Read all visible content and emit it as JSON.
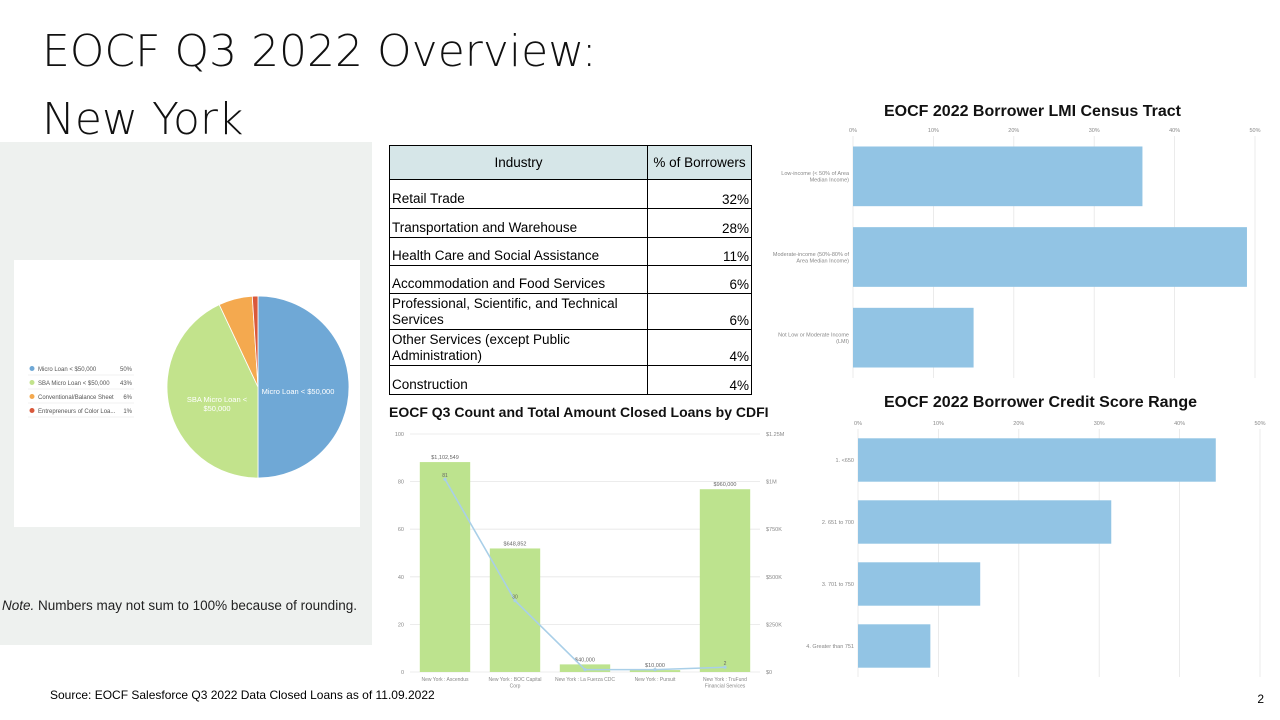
{
  "slide": {
    "title_line1": "EOCF Q3 2022 Overview:",
    "title_line2": "New York",
    "note_italic": "Note.",
    "note_text": " Numbers may not sum to 100% because of rounding.",
    "source": "Source: EOCF Salesforce Q3 2022 Data Closed Loans as of 11.09.2022",
    "page_number": "2"
  },
  "industry_table": {
    "headers": [
      "Industry",
      "% of Borrowers"
    ],
    "rows": [
      {
        "industry": "Retail Trade",
        "pct": "32%"
      },
      {
        "industry": "Transportation and Warehouse",
        "pct": "28%"
      },
      {
        "industry": "Health Care and Social Assistance",
        "pct": "11%"
      },
      {
        "industry": "Accommodation and Food Services",
        "pct": "6%"
      },
      {
        "industry": "Professional, Scientific, and Technical Services",
        "pct": "6%"
      },
      {
        "industry": "Other Services (except Public Administration)",
        "pct": "4%"
      },
      {
        "industry": "Construction",
        "pct": "4%"
      }
    ]
  },
  "chart_data": [
    {
      "type": "pie",
      "title": "",
      "slices": [
        {
          "label": "Micro Loan < $50,000",
          "value": 50,
          "display": "50%",
          "color": "#6fa8d6"
        },
        {
          "label": "SBA Micro Loan < $50,000",
          "value": 43,
          "display": "43%",
          "color": "#c2e38c"
        },
        {
          "label": "Conventional/Balance Sheet",
          "value": 6,
          "display": "6%",
          "color": "#f4a94f"
        },
        {
          "label": "Entrepreneurs of Color Loa...",
          "value": 1,
          "display": "1%",
          "color": "#d9593b"
        }
      ],
      "slice_labels": [
        "Micro Loan < $50,000",
        "SBA Micro Loan < $50,000"
      ],
      "legend": "left"
    },
    {
      "type": "bar",
      "title": "EOCF 2022  Borrower LMI Census Tract",
      "orientation": "horizontal",
      "categories": [
        "Low-income (< 50% of Area Median Income)",
        "Moderate-income (50%-80% of Area Median Income)",
        "Not Low or Moderate Income (LMI)"
      ],
      "values": [
        36,
        49,
        15
      ],
      "xlim": [
        0,
        50
      ],
      "xticks": [
        "0%",
        "10%",
        "20%",
        "30%",
        "40%",
        "50%"
      ],
      "color": "#92c4e4",
      "grid": true
    },
    {
      "type": "bar",
      "title": "EOCF 2022  Borrower Credit Score Range",
      "orientation": "horizontal",
      "categories": [
        "1. <650",
        "2. 651 to 700",
        "3. 701 to 750",
        "4. Greater than 751"
      ],
      "values": [
        44.5,
        31.5,
        15.2,
        9
      ],
      "xlim": [
        0,
        50
      ],
      "xticks": [
        "0%",
        "10%",
        "20%",
        "30%",
        "40%",
        "50%"
      ],
      "color": "#92c4e4",
      "grid": true
    },
    {
      "type": "bar",
      "title": "EOCF Q3 Count and Total Amount Closed Loans by CDFI",
      "categories": [
        "New York : Ascendus",
        "New York : BOC Capital Corp",
        "New York : La Fuerza CDC",
        "New York : Pursuit",
        "New York : TruFund Financial Services"
      ],
      "category_lines": [
        [
          "New York : Ascendus"
        ],
        [
          "New York : BOC Capital",
          "Corp"
        ],
        [
          "New York : La Fuerza CDC"
        ],
        [
          "New York : Pursuit"
        ],
        [
          "New York : TruFund",
          "Financial Services"
        ]
      ],
      "series": [
        {
          "type": "bar",
          "axis": "right",
          "values": [
            1102549,
            648852,
            40000,
            10000,
            960000
          ],
          "labels": [
            "$1,102,549",
            "$648,852",
            "$40,000",
            "$10,000",
            "$960,000"
          ],
          "color": "#bde38e"
        },
        {
          "type": "line",
          "axis": "left",
          "values": [
            81,
            30,
            1,
            1,
            2
          ],
          "labels": [
            "81",
            "30",
            "",
            "",
            "2"
          ],
          "color": "#a9cfe8"
        }
      ],
      "ylim_left": [
        0,
        100
      ],
      "yticks_left": [
        "0",
        "20",
        "40",
        "60",
        "80",
        "100"
      ],
      "ylim_right": [
        0,
        1250000
      ],
      "yticks_right": [
        "$0",
        "$250K",
        "$500K",
        "$750K",
        "$1M",
        "$1.25M"
      ],
      "grid": true
    }
  ]
}
